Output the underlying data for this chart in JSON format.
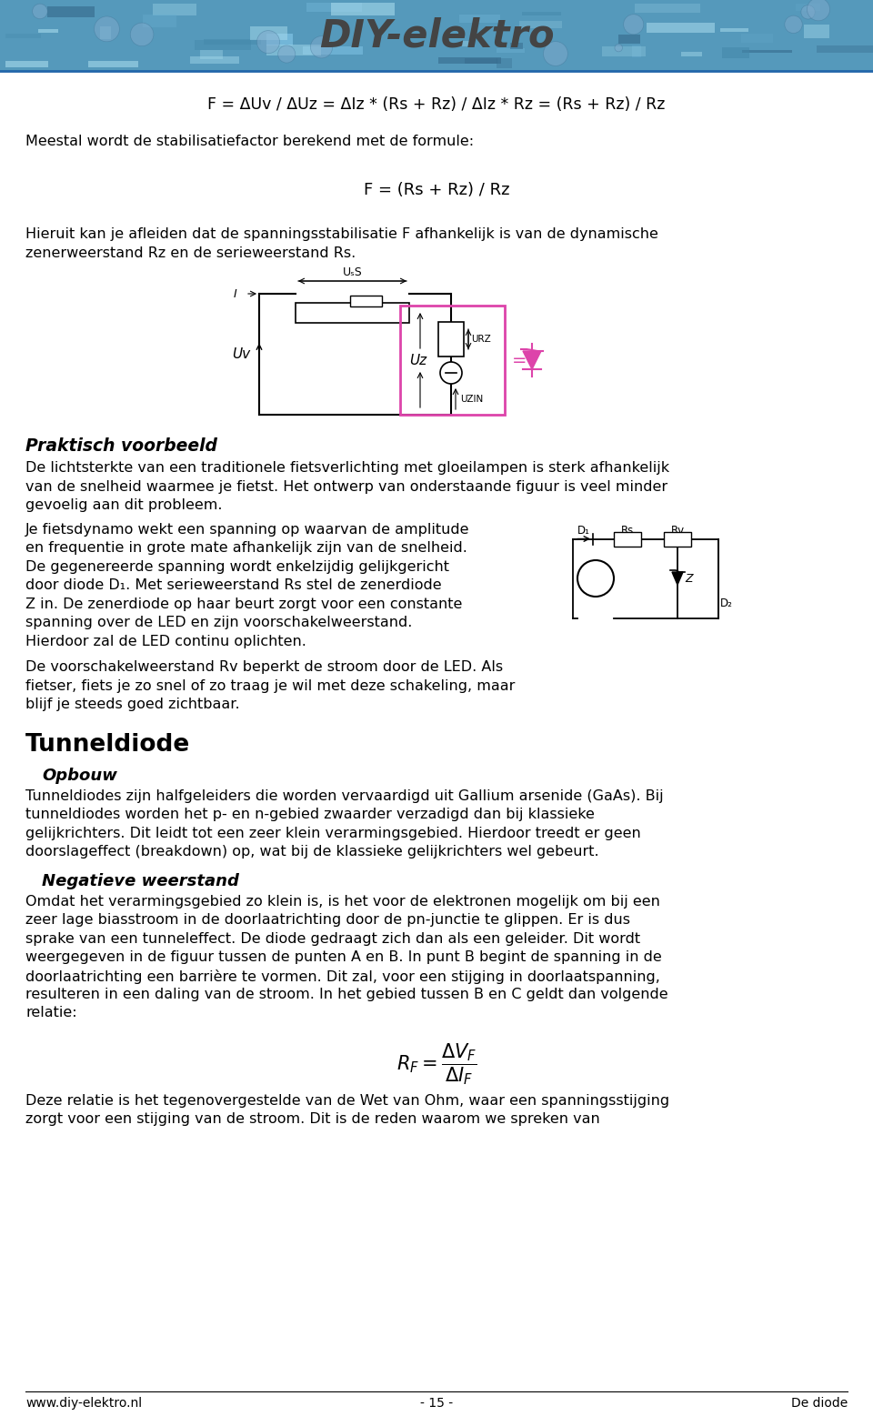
{
  "formula1": "F = ΔUv / ΔUz = ΔIz * (Rs + Rz) / ΔIz * Rz = (Rs + Rz) / Rz",
  "text1": "Meestal wordt de stabilisatiefactor berekend met de formule:",
  "formula2": "F = (Rs + Rz) / Rz",
  "text2a": "Hieruit kan je afleiden dat de spanningsstabilisatie F afhankelijk is van de dynamische",
  "text2b": "zenerweerstand Rz en de serieweerstand Rs.",
  "section_bold": "Praktisch voorbeeld",
  "text3a": "De lichtsterkte van een traditionele fietsverlichting met gloeilampen is sterk afhankelijk",
  "text3b": "van de snelheid waarmee je fietst. Het ontwerp van onderstaande figuur is veel minder",
  "text3c": "gevoelig aan dit probleem.",
  "text4a": "Je fietsdynamo wekt een spanning op waarvan de amplitude en frequentie in grote mate afhankelijk zijn van de snelheid.",
  "text4b": "De gegenereerde spanning wordt enkelzijdig gelijkgericht door diode D₁. Met serieweerstand Rs stel de zenerdiode",
  "text4c": "Z in. De zenerdiode op haar beurt zorgt voor een constante spanning over de LED en",
  "text4d": "zijn voorschakelweerstand. Hierdoor zal de LED continu oplichten.",
  "text5a": "De voorschakelweerstand Rv beperkt de stroom door de LED. Als",
  "text5b": "fietser, fiets je zo snel of zo traag je wil met deze schakeling, maar",
  "text5c": "blijf je steeds goed zichtbaar.",
  "section2": "Tunneldiode",
  "subsection2": "Opbouw",
  "text6a": "Tunneldiodes zijn halfgeleiders die worden vervaardigd uit Gallium arsenide (GaAs). Bij",
  "text6b": "tunneldiodes worden het p- en n-gebied zwaarder verzadigd dan bij klassieke",
  "text6c": "gelijkrichters. Dit leidt tot een zeer klein verarmingsgebied. Hierdoor treedt er geen",
  "text6d": "doorslageffect (breakdown) op, wat bij de klassieke gelijkrichters wel gebeurt.",
  "subsection3": "Negatieve weerstand",
  "text7a": "Omdat het verarmingsgebied zo klein is, is het voor de elektronen mogelijk om bij een",
  "text7b": "zeer lage biasstroom in de doorlaatrichting door de pn-junctie te glippen. Er is dus",
  "text7c": "sprake van een tunneleffect. De diode gedraagt zich dan als een geleider. Dit wordt",
  "text7d": "weergegeven in de figuur tussen de punten A en B. In punt B begint de spanning in de",
  "text7e": "doorlaatrichting een barrière te vormen. Dit zal, voor een stijging in doorlaatspanning,",
  "text7f": "resulteren in een daling van de stroom. In het gebied tussen B en C geldt dan volgende",
  "text7g": "relatie:",
  "text8a": "Deze relatie is het tegenovergestelde van de Wet van Ohm, waar een spanningsstijging",
  "text8b": "zorgt voor een stijging van de stroom. Dit is de reden waarom we spreken van",
  "footer_left": "www.diy-elektro.nl",
  "footer_center": "- 15 -",
  "footer_right": "De diode",
  "header_color1": "#3399CC",
  "header_color2": "#66BBDD"
}
